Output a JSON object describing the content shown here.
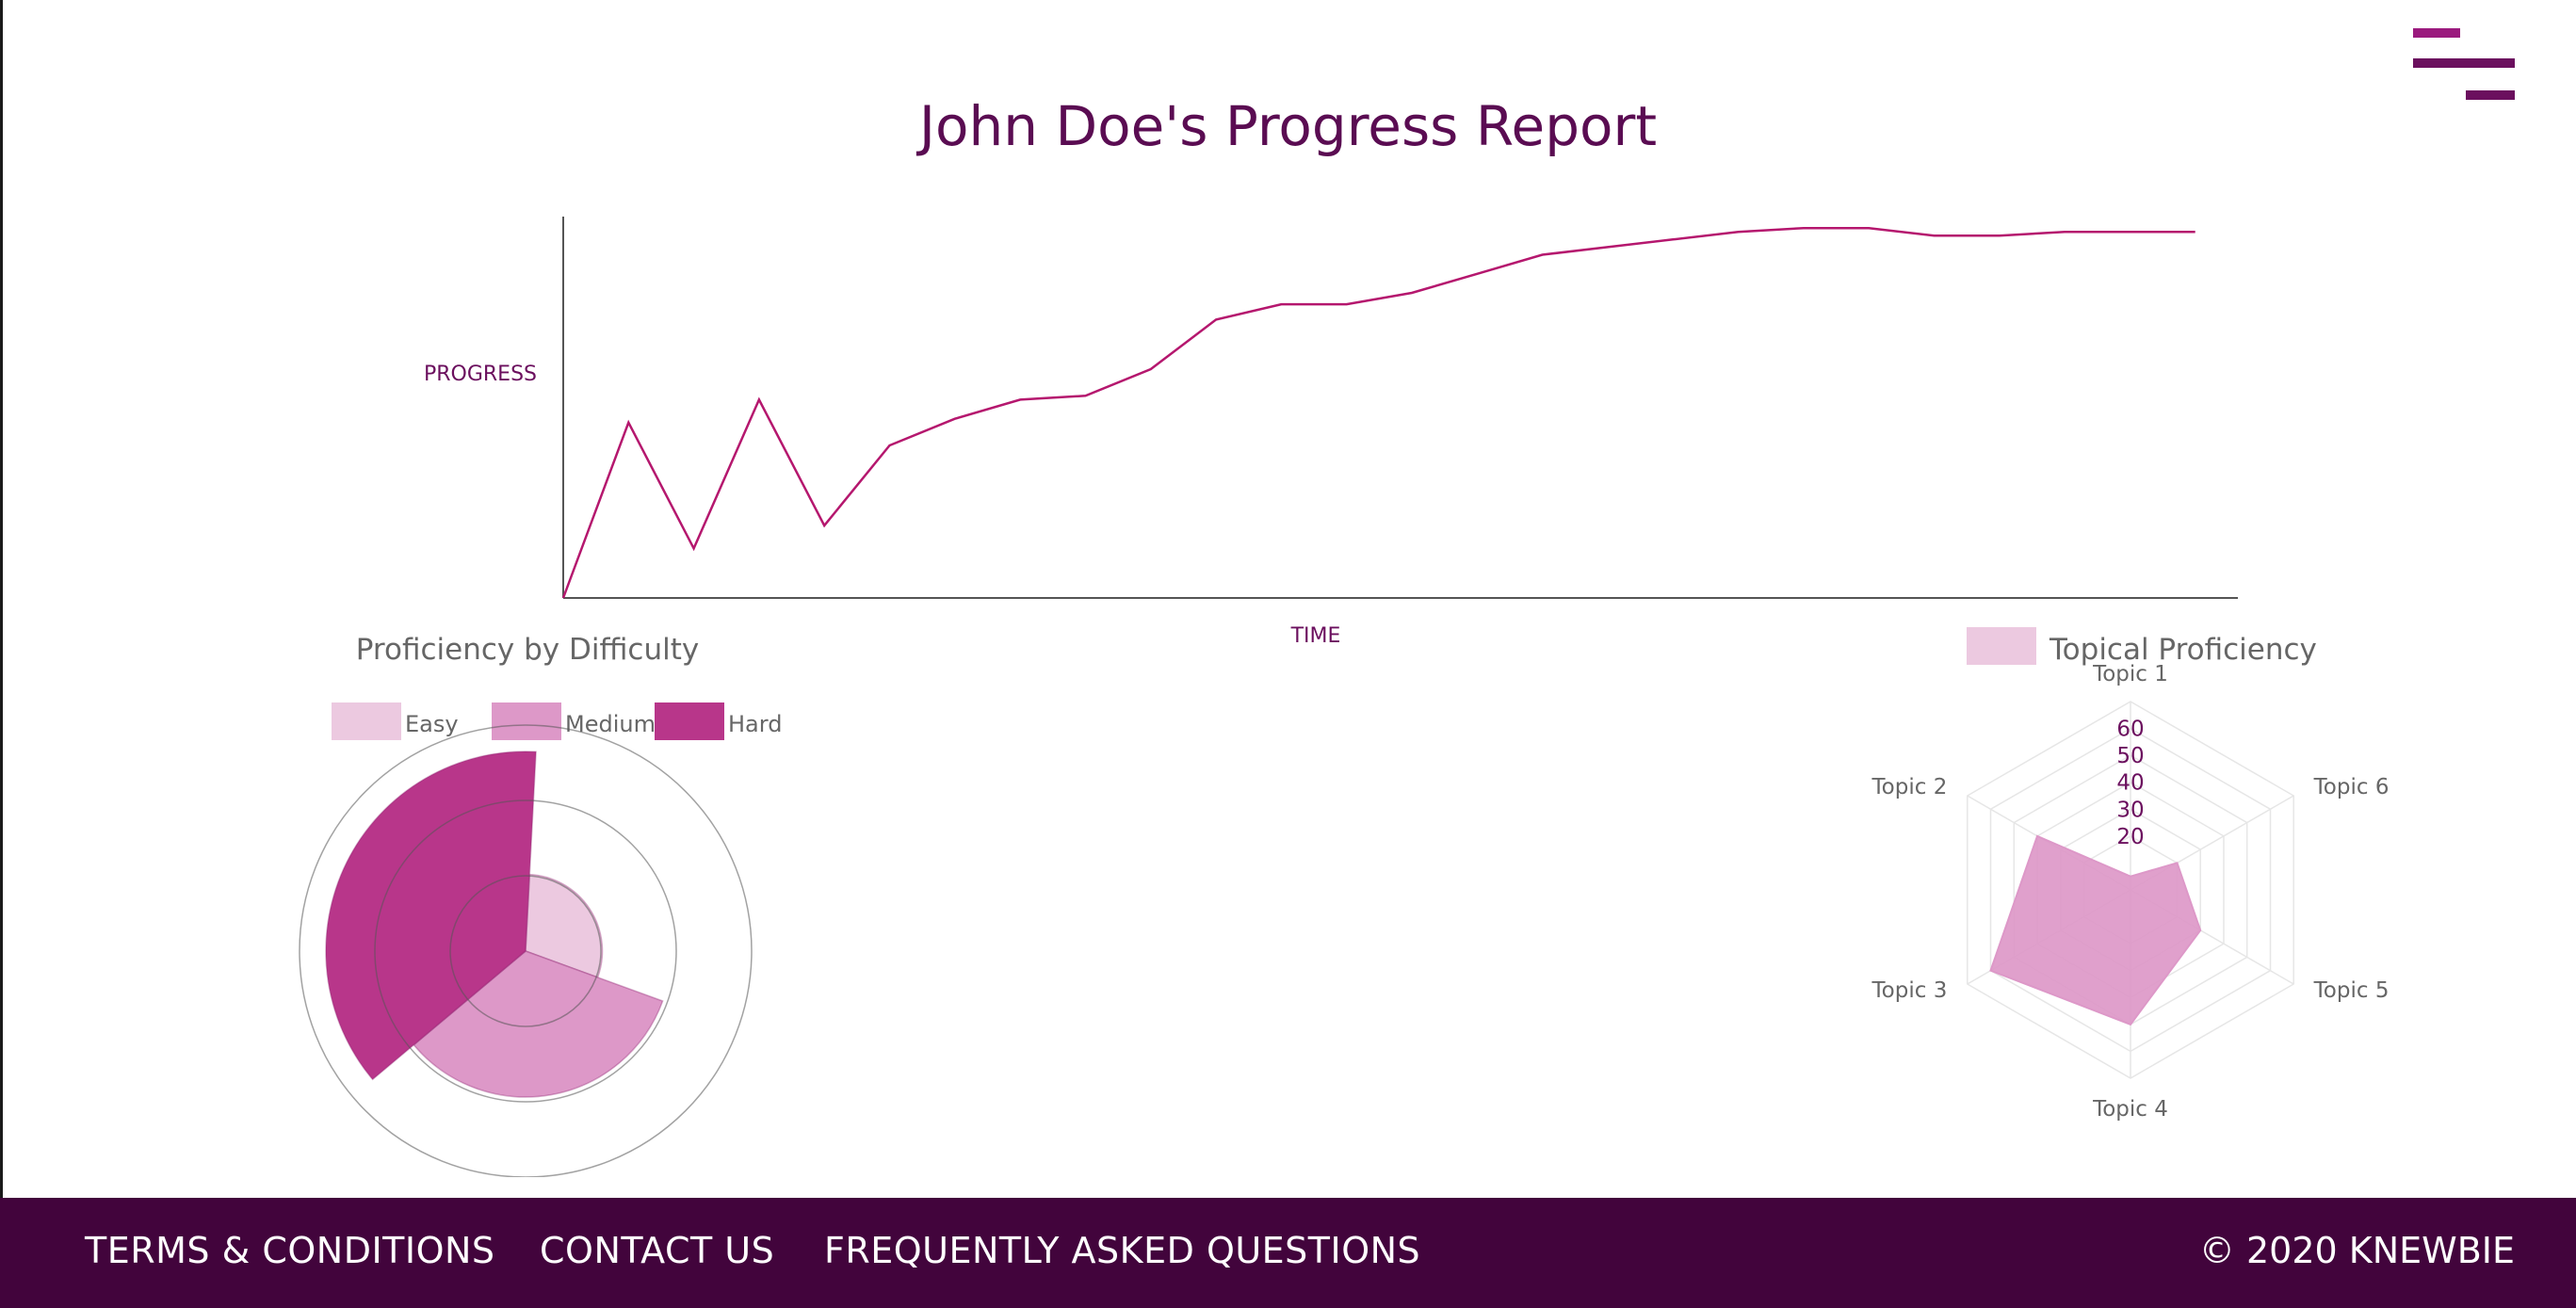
{
  "page_title": "John Doe's Progress Report",
  "footer": {
    "links": [
      "TERMS & CONDITIONS",
      "CONTACT US",
      "FREQUENTLY ASKED QUESTIONS"
    ],
    "copyright": "© 2020 KNEWBIE"
  },
  "icons": {
    "menu": "hamburger-menu-icon"
  },
  "colors": {
    "accent": "#6b0f5e",
    "line": "#b5176e",
    "easy": "#ecc9e0",
    "medium": "#dd98c8",
    "hard": "#b8368a",
    "footer_bg": "#42043c"
  },
  "chart_data": [
    {
      "type": "line",
      "title": "",
      "xlabel": "TIME",
      "ylabel": "PROGRESS",
      "x": [
        0,
        1,
        2,
        3,
        4,
        5,
        6,
        7,
        8,
        9,
        10,
        11,
        12,
        13,
        14,
        15,
        16,
        17,
        18,
        19,
        20,
        21,
        22,
        23,
        24,
        25
      ],
      "y": [
        0,
        46,
        13,
        52,
        19,
        40,
        47,
        52,
        53,
        60,
        73,
        77,
        77,
        80,
        85,
        90,
        92,
        94,
        96,
        97,
        97,
        95,
        95,
        96,
        96,
        96
      ],
      "xlim": [
        0,
        26
      ],
      "ylim": [
        0,
        100
      ],
      "grid": false,
      "legend": "none"
    },
    {
      "type": "polarArea",
      "title": "Proficiency by Difficulty",
      "legend": "top",
      "categories": [
        "Easy",
        "Medium",
        "Hard"
      ],
      "values": [
        20,
        38,
        52
      ],
      "colors": [
        "#ecc9e0",
        "#dd98c8",
        "#b8368a"
      ]
    },
    {
      "type": "radar",
      "title": "",
      "legend": "top",
      "series": [
        {
          "name": "Topical Proficiency",
          "values": [
            5,
            40,
            60,
            50,
            30,
            20
          ]
        }
      ],
      "categories": [
        "Topic 1",
        "Topic 2",
        "Topic 3",
        "Topic 4",
        "Topic 5",
        "Topic 6"
      ],
      "ticks": [
        20,
        30,
        40,
        50,
        60
      ],
      "rlim": [
        0,
        70
      ]
    }
  ]
}
